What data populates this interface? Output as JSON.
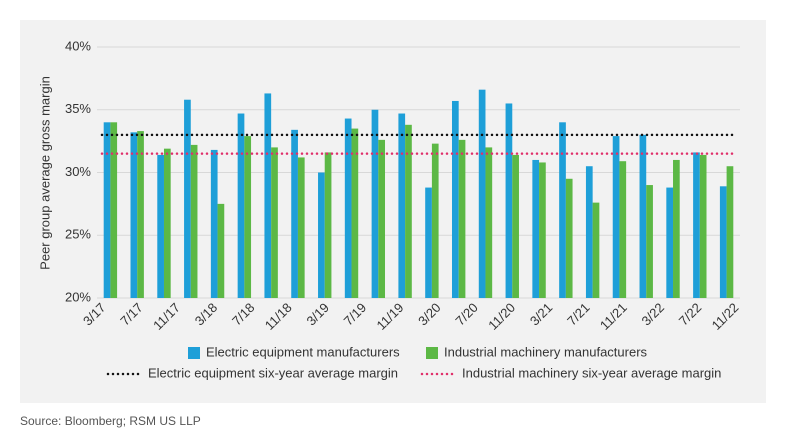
{
  "chart_data": {
    "type": "bar",
    "y_label": "Peer group average gross margin",
    "source": "Source: Bloomberg; RSM US LLP",
    "xticks": [
      "3/17",
      "7/17",
      "11/17",
      "3/18",
      "7/18",
      "11/18",
      "3/19",
      "7/19",
      "11/19",
      "3/20",
      "7/20",
      "11/20",
      "3/21",
      "7/21",
      "11/21",
      "3/22",
      "7/22",
      "11/22"
    ],
    "ylim": [
      20,
      40
    ],
    "yticks": [
      {
        "value": 20,
        "label": "20%"
      },
      {
        "value": 25,
        "label": "25%"
      },
      {
        "value": 30,
        "label": "30%"
      },
      {
        "value": 35,
        "label": "35%"
      },
      {
        "value": 40,
        "label": "40%"
      }
    ],
    "grid": true,
    "series": [
      {
        "name": "Electric equipment manufacturers",
        "color": "#1e9fd8",
        "values": [
          34.0,
          33.2,
          31.4,
          35.8,
          31.8,
          34.7,
          36.3,
          33.4,
          30.0,
          34.3,
          35.0,
          34.7,
          28.8,
          35.7,
          36.6,
          35.5,
          31.0,
          34.0,
          30.5,
          32.9,
          33.0,
          28.8,
          31.6,
          28.9
        ]
      },
      {
        "name": "Industrial machinery manufacturers",
        "color": "#5cb845",
        "values": [
          34.0,
          33.3,
          31.9,
          32.2,
          27.5,
          32.9,
          32.0,
          31.2,
          31.6,
          33.5,
          32.6,
          33.8,
          32.3,
          32.6,
          32.0,
          31.4,
          30.8,
          29.5,
          27.6,
          30.9,
          29.0,
          31.0,
          31.4,
          30.5
        ]
      }
    ],
    "reference_lines": [
      {
        "name": "Electric equipment six-year average margin",
        "color": "#111111",
        "value": 33.0
      },
      {
        "name": "Industrial machinery six-year average margin",
        "color": "#e0306a",
        "value": 31.5
      }
    ]
  }
}
